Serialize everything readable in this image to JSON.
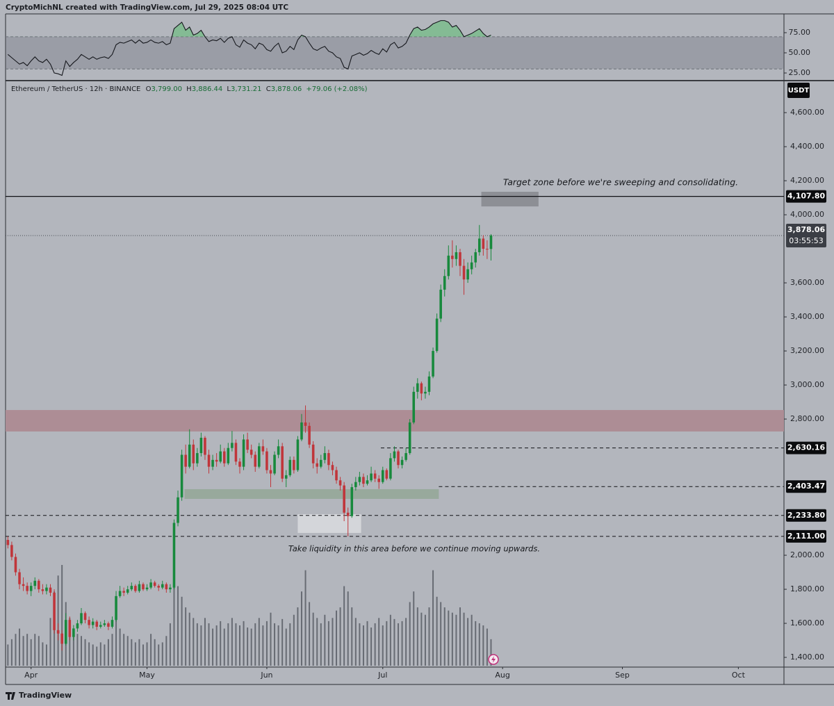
{
  "chart_data": {
    "type": "candlestick",
    "credit": "CryptoMichNL created with TradingView.com, Jul 29, 2025 08:04 UTC",
    "title": "Ethereum / TetherUS · 12h · BINANCE",
    "ohlc_legend": [
      {
        "key": "O",
        "text": "3,799.00"
      },
      {
        "key": "H",
        "text": "3,886.44"
      },
      {
        "key": "L",
        "text": "3,731.21"
      },
      {
        "key": "C",
        "text": "3,878.06"
      }
    ],
    "change_text": "+79.06 (+2.08%)",
    "currency": "USDT",
    "brand": "TradingView",
    "up_color": "#17893c",
    "down_color": "#c0353a",
    "volume_color": "#676b73",
    "xlim": [
      -6.6,
      194.8
    ],
    "xticks": [
      {
        "value": 0,
        "label": "Apr"
      },
      {
        "value": 30,
        "label": "May"
      },
      {
        "value": 61,
        "label": "Jun"
      },
      {
        "value": 91,
        "label": "Jul"
      },
      {
        "value": 122,
        "label": "Aug"
      },
      {
        "value": 153,
        "label": "Sep"
      },
      {
        "value": 183,
        "label": "Oct"
      }
    ],
    "ylim": [
      1343,
      4784
    ],
    "yticks": [
      {
        "value": 1400,
        "label": "1,400.00"
      },
      {
        "value": 1600,
        "label": "1,600.00"
      },
      {
        "value": 1800,
        "label": "1,800.00"
      },
      {
        "value": 2000,
        "label": "2,000.00"
      },
      {
        "value": 2800,
        "label": "2,800.00"
      },
      {
        "value": 3000,
        "label": "3,000.00"
      },
      {
        "value": 3200,
        "label": "3,200.00"
      },
      {
        "value": 3400,
        "label": "3,400.00"
      },
      {
        "value": 3600,
        "label": "3,600.00"
      },
      {
        "value": 4000,
        "label": "4,000.00"
      },
      {
        "value": 4200,
        "label": "4,200.00"
      },
      {
        "value": 4400,
        "label": "4,400.00"
      },
      {
        "value": 4600,
        "label": "4,600.00"
      }
    ],
    "x": [
      -6,
      -5,
      -4,
      -3,
      -2,
      -1,
      0,
      1,
      2,
      3,
      4,
      5,
      6,
      7,
      8,
      9,
      10,
      11,
      12,
      13,
      14,
      15,
      16,
      17,
      18,
      19,
      20,
      21,
      22,
      23,
      24,
      25,
      26,
      27,
      28,
      29,
      30,
      31,
      32,
      33,
      34,
      35,
      36,
      37,
      38,
      39,
      40,
      41,
      42,
      43,
      44,
      45,
      46,
      47,
      48,
      49,
      50,
      51,
      52,
      53,
      54,
      55,
      56,
      57,
      58,
      59,
      60,
      61,
      62,
      63,
      64,
      65,
      66,
      67,
      68,
      69,
      70,
      71,
      72,
      73,
      74,
      75,
      76,
      77,
      78,
      79,
      80,
      81,
      82,
      83,
      84,
      85,
      86,
      87,
      88,
      89,
      90,
      91,
      92,
      93,
      94,
      95,
      96,
      97,
      98,
      99,
      100,
      101,
      102,
      103,
      104,
      105,
      106,
      107,
      108,
      109,
      110,
      111,
      112,
      113,
      114,
      115,
      116,
      117,
      118,
      119
    ],
    "ohlc": [
      [
        2090,
        2110,
        2040,
        2060
      ],
      [
        2060,
        2080,
        1970,
        1990
      ],
      [
        1990,
        2010,
        1880,
        1900
      ],
      [
        1900,
        1920,
        1800,
        1830
      ],
      [
        1830,
        1870,
        1790,
        1820
      ],
      [
        1820,
        1840,
        1770,
        1790
      ],
      [
        1790,
        1840,
        1760,
        1820
      ],
      [
        1820,
        1870,
        1800,
        1850
      ],
      [
        1850,
        1860,
        1780,
        1800
      ],
      [
        1800,
        1830,
        1770,
        1790
      ],
      [
        1790,
        1830,
        1770,
        1810
      ],
      [
        1810,
        1830,
        1760,
        1780
      ],
      [
        1780,
        1800,
        1540,
        1560
      ],
      [
        1560,
        1600,
        1500,
        1540
      ],
      [
        1540,
        1560,
        1440,
        1480
      ],
      [
        1480,
        1660,
        1470,
        1620
      ],
      [
        1620,
        1640,
        1500,
        1520
      ],
      [
        1520,
        1590,
        1500,
        1570
      ],
      [
        1570,
        1620,
        1550,
        1600
      ],
      [
        1600,
        1690,
        1590,
        1660
      ],
      [
        1660,
        1670,
        1600,
        1620
      ],
      [
        1620,
        1640,
        1570,
        1590
      ],
      [
        1590,
        1630,
        1570,
        1610
      ],
      [
        1610,
        1620,
        1560,
        1580
      ],
      [
        1580,
        1610,
        1570,
        1590
      ],
      [
        1590,
        1620,
        1580,
        1600
      ],
      [
        1600,
        1610,
        1560,
        1580
      ],
      [
        1580,
        1640,
        1570,
        1620
      ],
      [
        1620,
        1790,
        1610,
        1760
      ],
      [
        1760,
        1820,
        1750,
        1790
      ],
      [
        1790,
        1810,
        1760,
        1780
      ],
      [
        1780,
        1820,
        1770,
        1800
      ],
      [
        1800,
        1840,
        1790,
        1820
      ],
      [
        1820,
        1830,
        1780,
        1790
      ],
      [
        1790,
        1850,
        1780,
        1830
      ],
      [
        1830,
        1840,
        1790,
        1800
      ],
      [
        1800,
        1830,
        1790,
        1810
      ],
      [
        1810,
        1860,
        1800,
        1840
      ],
      [
        1840,
        1850,
        1810,
        1820
      ],
      [
        1820,
        1830,
        1790,
        1810
      ],
      [
        1810,
        1850,
        1800,
        1830
      ],
      [
        1830,
        1840,
        1780,
        1800
      ],
      [
        1800,
        1830,
        1780,
        1810
      ],
      [
        1810,
        2210,
        1800,
        2190
      ],
      [
        2190,
        2380,
        2170,
        2340
      ],
      [
        2340,
        2620,
        2320,
        2590
      ],
      [
        2590,
        2650,
        2480,
        2520
      ],
      [
        2520,
        2740,
        2510,
        2650
      ],
      [
        2650,
        2680,
        2500,
        2540
      ],
      [
        2540,
        2630,
        2520,
        2600
      ],
      [
        2600,
        2720,
        2580,
        2690
      ],
      [
        2690,
        2700,
        2560,
        2590
      ],
      [
        2590,
        2620,
        2480,
        2520
      ],
      [
        2520,
        2590,
        2500,
        2560
      ],
      [
        2560,
        2600,
        2520,
        2550
      ],
      [
        2550,
        2650,
        2540,
        2610
      ],
      [
        2610,
        2630,
        2520,
        2540
      ],
      [
        2540,
        2660,
        2530,
        2630
      ],
      [
        2630,
        2730,
        2610,
        2660
      ],
      [
        2660,
        2680,
        2530,
        2550
      ],
      [
        2550,
        2570,
        2480,
        2520
      ],
      [
        2520,
        2710,
        2500,
        2680
      ],
      [
        2680,
        2720,
        2600,
        2620
      ],
      [
        2620,
        2650,
        2570,
        2590
      ],
      [
        2590,
        2610,
        2490,
        2520
      ],
      [
        2520,
        2660,
        2510,
        2640
      ],
      [
        2640,
        2680,
        2590,
        2610
      ],
      [
        2610,
        2630,
        2480,
        2500
      ],
      [
        2500,
        2530,
        2400,
        2480
      ],
      [
        2480,
        2610,
        2470,
        2590
      ],
      [
        2590,
        2680,
        2570,
        2640
      ],
      [
        2640,
        2660,
        2430,
        2450
      ],
      [
        2450,
        2500,
        2400,
        2470
      ],
      [
        2470,
        2580,
        2460,
        2560
      ],
      [
        2560,
        2580,
        2480,
        2500
      ],
      [
        2500,
        2700,
        2490,
        2680
      ],
      [
        2680,
        2830,
        2670,
        2780
      ],
      [
        2780,
        2880,
        2720,
        2760
      ],
      [
        2760,
        2780,
        2630,
        2650
      ],
      [
        2650,
        2670,
        2510,
        2540
      ],
      [
        2540,
        2570,
        2480,
        2520
      ],
      [
        2520,
        2590,
        2510,
        2560
      ],
      [
        2560,
        2640,
        2540,
        2600
      ],
      [
        2600,
        2620,
        2500,
        2530
      ],
      [
        2530,
        2550,
        2470,
        2500
      ],
      [
        2500,
        2520,
        2420,
        2440
      ],
      [
        2440,
        2460,
        2380,
        2410
      ],
      [
        2410,
        2430,
        2200,
        2250
      ],
      [
        2250,
        2280,
        2111,
        2230
      ],
      [
        2230,
        2420,
        2220,
        2400
      ],
      [
        2400,
        2460,
        2380,
        2430
      ],
      [
        2430,
        2490,
        2410,
        2460
      ],
      [
        2460,
        2480,
        2400,
        2420
      ],
      [
        2420,
        2470,
        2410,
        2440
      ],
      [
        2440,
        2520,
        2430,
        2480
      ],
      [
        2480,
        2500,
        2430,
        2450
      ],
      [
        2450,
        2470,
        2390,
        2430
      ],
      [
        2430,
        2520,
        2420,
        2500
      ],
      [
        2500,
        2510,
        2440,
        2450
      ],
      [
        2450,
        2600,
        2440,
        2570
      ],
      [
        2570,
        2640,
        2550,
        2610
      ],
      [
        2610,
        2620,
        2510,
        2530
      ],
      [
        2530,
        2580,
        2510,
        2560
      ],
      [
        2560,
        2630,
        2550,
        2600
      ],
      [
        2600,
        2800,
        2590,
        2780
      ],
      [
        2780,
        2990,
        2770,
        2960
      ],
      [
        2960,
        3040,
        2920,
        3010
      ],
      [
        3010,
        3020,
        2910,
        2950
      ],
      [
        2950,
        2990,
        2920,
        2960
      ],
      [
        2960,
        3080,
        2940,
        3050
      ],
      [
        3050,
        3220,
        3040,
        3200
      ],
      [
        3200,
        3420,
        3190,
        3390
      ],
      [
        3390,
        3590,
        3370,
        3560
      ],
      [
        3560,
        3680,
        3520,
        3640
      ],
      [
        3640,
        3820,
        3620,
        3760
      ],
      [
        3760,
        3850,
        3690,
        3740
      ],
      [
        3740,
        3820,
        3700,
        3780
      ],
      [
        3780,
        3800,
        3640,
        3700
      ],
      [
        3700,
        3740,
        3530,
        3620
      ],
      [
        3620,
        3720,
        3600,
        3680
      ],
      [
        3680,
        3760,
        3650,
        3720
      ],
      [
        3720,
        3800,
        3690,
        3780
      ],
      [
        3780,
        3940,
        3760,
        3860
      ],
      [
        3860,
        3880,
        3760,
        3800
      ],
      [
        3800,
        3850,
        3740,
        3799
      ],
      [
        3799,
        3886.44,
        3731.21,
        3878.06
      ]
    ],
    "volume": [
      20,
      25,
      30,
      35,
      28,
      30,
      25,
      30,
      28,
      22,
      20,
      45,
      70,
      85,
      95,
      60,
      45,
      35,
      30,
      28,
      25,
      22,
      20,
      18,
      22,
      20,
      25,
      30,
      50,
      35,
      30,
      28,
      25,
      22,
      25,
      20,
      22,
      30,
      25,
      20,
      22,
      28,
      40,
      80,
      75,
      65,
      55,
      50,
      45,
      40,
      38,
      45,
      40,
      35,
      38,
      42,
      35,
      40,
      45,
      40,
      38,
      42,
      36,
      35,
      40,
      45,
      38,
      42,
      50,
      40,
      38,
      44,
      35,
      40,
      48,
      55,
      70,
      90,
      60,
      50,
      45,
      40,
      48,
      42,
      45,
      52,
      55,
      75,
      70,
      55,
      45,
      40,
      38,
      42,
      36,
      40,
      45,
      38,
      42,
      48,
      44,
      40,
      42,
      45,
      60,
      70,
      55,
      50,
      48,
      55,
      90,
      65,
      60,
      55,
      52,
      50,
      48,
      55,
      50,
      45,
      48,
      42,
      40,
      38,
      35,
      25
    ],
    "last_price": {
      "value": 3878.06,
      "label": "3,878.06",
      "countdown": "03:55:53"
    },
    "levels": [
      {
        "value": 4107.8,
        "label": "4,107.80",
        "style": "solid",
        "from": -6.6
      },
      {
        "value": 2630.16,
        "label": "2,630.16",
        "style": "dashed",
        "from": 90.5
      },
      {
        "value": 2403.47,
        "label": "2,403.47",
        "style": "dashed",
        "from": 105.5
      },
      {
        "value": 2233.8,
        "label": "2,233.80",
        "style": "dashed",
        "from": -6.6
      },
      {
        "value": 2111,
        "label": "2,111.00",
        "style": "dashed",
        "from": -6.6
      }
    ],
    "zones": [
      {
        "price": [
          2727,
          2853
        ],
        "x": [
          -6.6,
          194.8
        ],
        "color": "#ad8d95"
      },
      {
        "price": [
          2331,
          2388
        ],
        "x": [
          39.7,
          105.5
        ],
        "color": "#98a99c"
      },
      {
        "price": [
          2131,
          2241
        ],
        "x": [
          69,
          85.4
        ],
        "color": "#d4d6da"
      },
      {
        "price": [
          4049,
          4135
        ],
        "x": [
          116.5,
          131.3
        ],
        "color": "#8d8f95"
      }
    ],
    "annotations": [
      "Target zone before we're sweeping and consolidating.",
      "Take liquidity in this area before we continue moving upwards."
    ],
    "rsi": {
      "values": [
        48,
        44,
        40,
        36,
        38,
        34,
        40,
        45,
        40,
        38,
        42,
        36,
        25,
        24,
        22,
        40,
        33,
        38,
        42,
        48,
        45,
        42,
        45,
        42,
        44,
        45,
        43,
        48,
        60,
        63,
        62,
        64,
        66,
        62,
        66,
        62,
        63,
        66,
        63,
        62,
        64,
        60,
        62,
        80,
        84,
        88,
        78,
        82,
        72,
        74,
        78,
        70,
        64,
        66,
        65,
        68,
        63,
        68,
        70,
        60,
        57,
        66,
        62,
        60,
        55,
        62,
        60,
        54,
        52,
        58,
        62,
        50,
        52,
        58,
        54,
        66,
        72,
        70,
        62,
        55,
        53,
        56,
        58,
        52,
        50,
        45,
        43,
        32,
        30,
        46,
        48,
        50,
        47,
        49,
        53,
        50,
        48,
        55,
        51,
        60,
        63,
        56,
        58,
        62,
        72,
        80,
        82,
        78,
        79,
        82,
        86,
        88,
        90,
        90,
        88,
        82,
        84,
        78,
        70,
        72,
        74,
        77,
        80,
        74,
        70,
        72
      ],
      "ylim": [
        16.4,
        98.3
      ],
      "yticks": [
        {
          "value": 75,
          "label": "75.00"
        },
        {
          "value": 50,
          "label": "50.00"
        },
        {
          "value": 25,
          "label": "25.00"
        }
      ],
      "band": [
        30,
        70
      ],
      "color": "#15171c",
      "overbought_color": "#5cbf72"
    }
  }
}
